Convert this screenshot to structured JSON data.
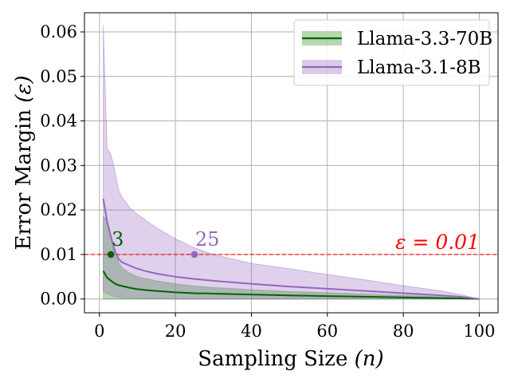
{
  "chart_data": {
    "type": "line",
    "title": "",
    "xlabel": "Sampling Size",
    "xlabel_var": "(n)",
    "ylabel": "Error Margin",
    "ylabel_var": "(ε)",
    "xlim": [
      -3.95,
      104.95
    ],
    "ylim": [
      -0.0031,
      0.0643
    ],
    "xticks": [
      0,
      20,
      40,
      60,
      80,
      100
    ],
    "xtick_labels": [
      "0",
      "20",
      "40",
      "60",
      "80",
      "100"
    ],
    "yticks": [
      0.0,
      0.01,
      0.02,
      0.03,
      0.04,
      0.05,
      0.06
    ],
    "ytick_labels": [
      "0.00",
      "0.01",
      "0.02",
      "0.03",
      "0.04",
      "0.05",
      "0.06"
    ],
    "grid": true,
    "legend_position": "top-right",
    "series": [
      {
        "name": "Llama-3.3-70B",
        "color": "#006400",
        "band_color": "#4a9a3a",
        "x": [
          1,
          2,
          3,
          4,
          5,
          6,
          8,
          10,
          12,
          15,
          20,
          25,
          30,
          40,
          50,
          60,
          70,
          80,
          90,
          95,
          100
        ],
        "y": [
          0.0063,
          0.0048,
          0.0041,
          0.0035,
          0.0031,
          0.0029,
          0.0025,
          0.0022,
          0.002,
          0.0018,
          0.0015,
          0.0013,
          0.0012,
          0.001,
          0.0008,
          0.00065,
          0.0005,
          0.00035,
          0.0002,
          0.00012,
          0.0
        ],
        "upper": [
          0.0185,
          0.0178,
          0.0145,
          0.01,
          0.0082,
          0.007,
          0.0058,
          0.005,
          0.0046,
          0.0041,
          0.0034,
          0.0029,
          0.0026,
          0.0021,
          0.0017,
          0.0014,
          0.0011,
          0.0008,
          0.0005,
          0.0003,
          0.0
        ],
        "lower": [
          0.0,
          0.0,
          0.0,
          0.0,
          0.0,
          0.0,
          0.0,
          0.0,
          0.0,
          0.0,
          0.0,
          0.0,
          0.0,
          0.0,
          0.0,
          0.0,
          0.0,
          0.0,
          0.0,
          0.0,
          0.0
        ],
        "marker": {
          "x": 3,
          "y": 0.01,
          "label": "3"
        }
      },
      {
        "name": "Llama-3.1-8B",
        "color": "#9467bd",
        "band_color": "#9467bd",
        "x": [
          1,
          2,
          3,
          4,
          5,
          6,
          8,
          10,
          12,
          15,
          20,
          25,
          30,
          40,
          50,
          60,
          70,
          80,
          90,
          95,
          100
        ],
        "y": [
          0.0225,
          0.0175,
          0.014,
          0.011,
          0.009,
          0.0082,
          0.0075,
          0.0068,
          0.0063,
          0.0057,
          0.005,
          0.0045,
          0.0041,
          0.0034,
          0.0028,
          0.0023,
          0.0018,
          0.0013,
          0.0008,
          0.0005,
          0.0
        ],
        "upper": [
          0.0615,
          0.034,
          0.0325,
          0.029,
          0.0245,
          0.0228,
          0.0205,
          0.019,
          0.0178,
          0.016,
          0.0135,
          0.0115,
          0.01,
          0.008,
          0.0068,
          0.0055,
          0.0043,
          0.003,
          0.0018,
          0.001,
          0.0
        ],
        "lower": [
          0.0018,
          0.0012,
          0.0008,
          0.0005,
          0.0004,
          0.0003,
          0.0002,
          0.0002,
          0.0001,
          0.0001,
          0.0,
          0.0,
          0.0,
          0.0,
          0.0,
          0.0,
          0.0,
          0.0,
          0.0,
          0.0,
          0.0
        ],
        "marker": {
          "x": 25,
          "y": 0.01,
          "label": "25"
        }
      }
    ],
    "threshold": {
      "y": 0.01,
      "label": "ε = 0.01",
      "color": "#ff0000"
    }
  }
}
